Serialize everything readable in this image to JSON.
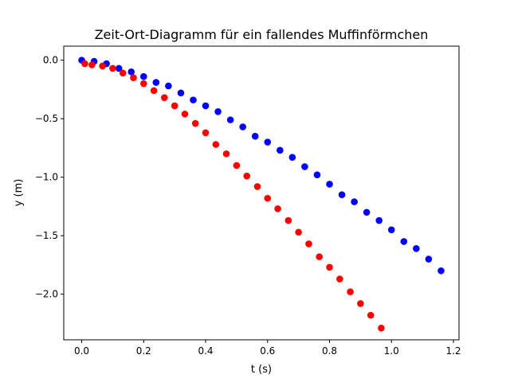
{
  "chart_data": {
    "type": "scatter",
    "title": "Zeit-Ort-Diagramm für ein fallendes Muffinförmchen",
    "xlabel": "t (s)",
    "ylabel": "y (m)",
    "xlim": [
      -0.058,
      1.218
    ],
    "ylim": [
      -2.39,
      0.12
    ],
    "xticks": [
      0.0,
      0.2,
      0.4,
      0.6,
      0.8,
      1.0,
      1.2
    ],
    "xtick_labels": [
      "0.0",
      "0.2",
      "0.4",
      "0.6",
      "0.8",
      "1.0",
      "1.2"
    ],
    "yticks": [
      0.0,
      -0.5,
      -1.0,
      -1.5,
      -2.0
    ],
    "ytick_labels": [
      "0.0",
      "−0.5",
      "−1.0",
      "−1.5",
      "−2.0"
    ],
    "grid": false,
    "series": [
      {
        "color": "#0000ff",
        "x": [
          0.0,
          0.04,
          0.08,
          0.12,
          0.16,
          0.2,
          0.24,
          0.28,
          0.32,
          0.36,
          0.4,
          0.44,
          0.48,
          0.52,
          0.56,
          0.6,
          0.64,
          0.68,
          0.72,
          0.76,
          0.8,
          0.84,
          0.88,
          0.92,
          0.96,
          1.0,
          1.04,
          1.08,
          1.12,
          1.16
        ],
        "y": [
          0.0,
          -0.01,
          -0.03,
          -0.07,
          -0.1,
          -0.14,
          -0.19,
          -0.22,
          -0.28,
          -0.34,
          -0.39,
          -0.44,
          -0.51,
          -0.57,
          -0.65,
          -0.7,
          -0.77,
          -0.83,
          -0.91,
          -0.98,
          -1.06,
          -1.15,
          -1.21,
          -1.3,
          -1.37,
          -1.45,
          -1.55,
          -1.61,
          -1.7,
          -1.8
        ]
      },
      {
        "color": "#ff0000",
        "x": [
          0.01,
          0.033,
          0.067,
          0.1,
          0.133,
          0.167,
          0.2,
          0.233,
          0.267,
          0.3,
          0.333,
          0.367,
          0.4,
          0.433,
          0.467,
          0.5,
          0.533,
          0.567,
          0.6,
          0.633,
          0.667,
          0.7,
          0.733,
          0.767,
          0.8,
          0.833,
          0.867,
          0.9,
          0.933,
          0.967
        ],
        "y": [
          -0.03,
          -0.04,
          -0.05,
          -0.07,
          -0.11,
          -0.15,
          -0.2,
          -0.26,
          -0.32,
          -0.39,
          -0.46,
          -0.54,
          -0.62,
          -0.72,
          -0.8,
          -0.9,
          -0.99,
          -1.08,
          -1.18,
          -1.27,
          -1.37,
          -1.47,
          -1.57,
          -1.68,
          -1.77,
          -1.87,
          -1.98,
          -2.08,
          -2.18,
          -2.29
        ]
      }
    ]
  }
}
